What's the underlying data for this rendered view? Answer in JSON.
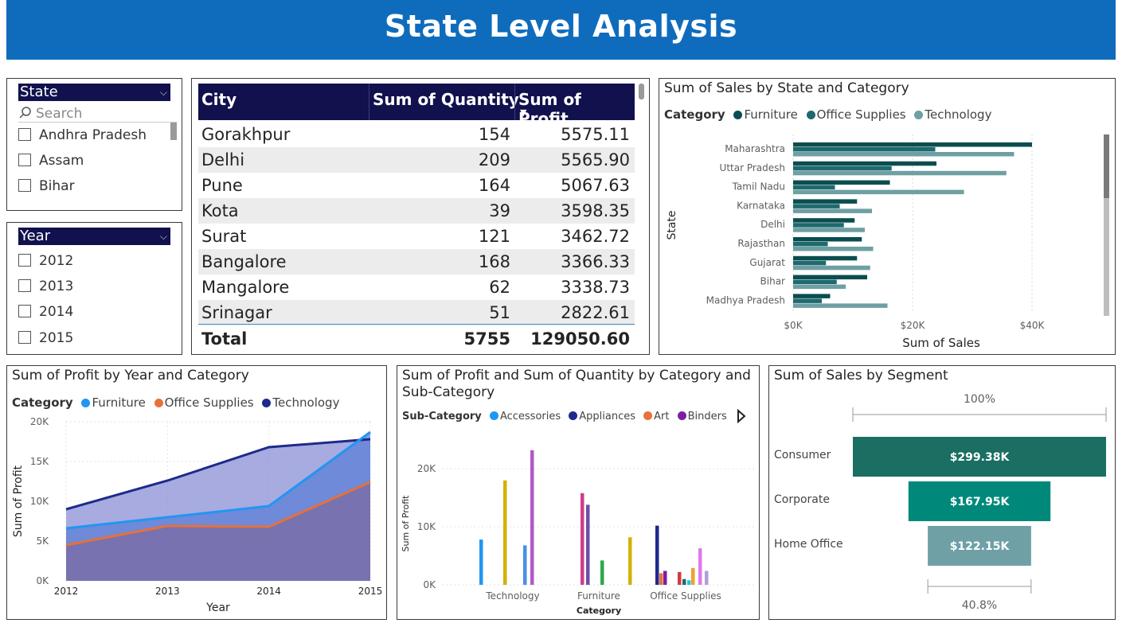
{
  "header": {
    "title": "State Level Analysis"
  },
  "state_slicer": {
    "title": "State",
    "search_placeholder": "Search",
    "items": [
      "Andhra Pradesh",
      "Assam",
      "Bihar"
    ]
  },
  "year_slicer": {
    "title": "Year",
    "items": [
      "2012",
      "2013",
      "2014",
      "2015"
    ]
  },
  "city_table": {
    "columns": [
      "City",
      "Sum of Quantity",
      "Sum of Profit"
    ],
    "rows": [
      [
        "Gorakhpur",
        "154",
        "5575.11"
      ],
      [
        "Delhi",
        "209",
        "5565.90"
      ],
      [
        "Pune",
        "164",
        "5067.63"
      ],
      [
        "Kota",
        "39",
        "3598.35"
      ],
      [
        "Surat",
        "121",
        "3462.72"
      ],
      [
        "Bangalore",
        "168",
        "3366.33"
      ],
      [
        "Mangalore",
        "62",
        "3338.73"
      ],
      [
        "Srinagar",
        "51",
        "2822.61"
      ]
    ],
    "total": [
      "Total",
      "5755",
      "129050.60"
    ]
  },
  "colors": {
    "header": "#0f6cbd",
    "slicer_head": "#11114e",
    "furniture_dark": "#0b4d4f",
    "office_dark": "#1e6a6e",
    "technology_teal": "#6e9fa3",
    "line_furniture": "#2196f3",
    "line_office": "#e8703a",
    "line_technology": "#1e2a8c",
    "funnel_consumer": "#1a6e62",
    "funnel_corporate": "#00897b",
    "funnel_home": "#6ea0a6"
  },
  "chart_data": [
    {
      "id": "sales_by_state",
      "type": "bar",
      "orientation": "horizontal",
      "title": "Sum of Sales by State and Category",
      "legend_title": "Category",
      "xlabel": "Sum of Sales",
      "ylabel": "State",
      "x_ticks": [
        "$0K",
        "$20K",
        "$40K"
      ],
      "xlim": [
        0,
        48000
      ],
      "categories": [
        "Maharashtra",
        "Uttar Pradesh",
        "Tamil Nadu",
        "Karnataka",
        "Delhi",
        "Rajasthan",
        "Gujarat",
        "Bihar",
        "Madhya Pradesh"
      ],
      "series": [
        {
          "name": "Furniture",
          "color": "#0b4d4f",
          "values": [
            40000,
            24000,
            16200,
            10700,
            10300,
            11500,
            10700,
            12400,
            6200
          ]
        },
        {
          "name": "Office Supplies",
          "color": "#1e6a6e",
          "values": [
            23800,
            16500,
            7000,
            7800,
            8500,
            5800,
            5500,
            7300,
            4800
          ]
        },
        {
          "name": "Technology",
          "color": "#6e9fa3",
          "values": [
            37000,
            35700,
            28600,
            13200,
            12000,
            13400,
            12900,
            8800,
            15800
          ]
        }
      ]
    },
    {
      "id": "profit_by_year",
      "type": "area",
      "title": "Sum of Profit by Year and Category",
      "legend_title": "Category",
      "xlabel": "Year",
      "ylabel": "Sum of Profit",
      "x": [
        "2012",
        "2013",
        "2014",
        "2015"
      ],
      "y_ticks": [
        "0K",
        "5K",
        "10K",
        "15K",
        "20K"
      ],
      "ylim": [
        0,
        20000
      ],
      "series": [
        {
          "name": "Furniture",
          "color": "#2196f3",
          "values": [
            6600,
            8000,
            9400,
            18700
          ]
        },
        {
          "name": "Office Supplies",
          "color": "#e8703a",
          "values": [
            4500,
            6900,
            6800,
            12400
          ]
        },
        {
          "name": "Technology",
          "color": "#1e2a8c",
          "values": [
            9000,
            12600,
            16800,
            17800
          ]
        }
      ]
    },
    {
      "id": "profit_by_subcategory",
      "type": "bar",
      "title_lines": [
        "Sum of Profit and Sum of Quantity by Category and",
        "Sub-Category"
      ],
      "legend_title": "Sub-Category",
      "legend": [
        {
          "name": "Accessories",
          "color": "#2196f3"
        },
        {
          "name": "Appliances",
          "color": "#1e2a8c"
        },
        {
          "name": "Art",
          "color": "#e8703a"
        },
        {
          "name": "Binders",
          "color": "#7b1fa2"
        }
      ],
      "xlabel": "Category",
      "ylabel": "Sum of Profit",
      "y_ticks": [
        "0K",
        "10K",
        "20K"
      ],
      "ylim": [
        0,
        24000
      ],
      "categories": [
        "Technology",
        "Furniture",
        "Office Supplies"
      ],
      "bars": [
        {
          "category": "Technology",
          "color": "#2196f3",
          "value": 7800
        },
        {
          "category": "Technology",
          "color": "#d4b106",
          "value": 18000
        },
        {
          "category": "Technology",
          "color": "#4a90e2",
          "value": 6800
        },
        {
          "category": "Technology",
          "color": "#b05ac8",
          "value": 23200
        },
        {
          "category": "Furniture",
          "color": "#d23c8c",
          "value": 15800
        },
        {
          "category": "Furniture",
          "color": "#6c4fa8",
          "value": 13800
        },
        {
          "category": "Furniture",
          "color": "#2ea84a",
          "value": 4200
        },
        {
          "category": "Furniture",
          "color": "#d4b106",
          "value": 8200
        },
        {
          "category": "Office Supplies",
          "color": "#1e2a8c",
          "value": 10200
        },
        {
          "category": "Office Supplies",
          "color": "#e8703a",
          "value": 2000
        },
        {
          "category": "Office Supplies",
          "color": "#7b1fa2",
          "value": 2400
        },
        {
          "category": "Office Supplies",
          "color": "#d23c3c",
          "value": 2200
        },
        {
          "category": "Office Supplies",
          "color": "#1e6a6e",
          "value": 1000
        },
        {
          "category": "Office Supplies",
          "color": "#26c6da",
          "value": 800
        },
        {
          "category": "Office Supplies",
          "color": "#f0a030",
          "value": 2900
        },
        {
          "category": "Office Supplies",
          "color": "#e07ae8",
          "value": 6300
        },
        {
          "category": "Office Supplies",
          "color": "#b39ddb",
          "value": 2400
        }
      ]
    },
    {
      "id": "sales_by_segment",
      "type": "funnel",
      "title": "Sum of Sales by Segment",
      "top_percent": "100%",
      "bottom_percent": "40.8%",
      "categories": [
        "Consumer",
        "Corporate",
        "Home Office"
      ],
      "values": [
        299.38,
        167.95,
        122.15
      ],
      "labels": [
        "$299.38K",
        "$167.95K",
        "$122.15K"
      ],
      "colors": [
        "#1a6e62",
        "#00897b",
        "#6ea0a6"
      ]
    }
  ]
}
